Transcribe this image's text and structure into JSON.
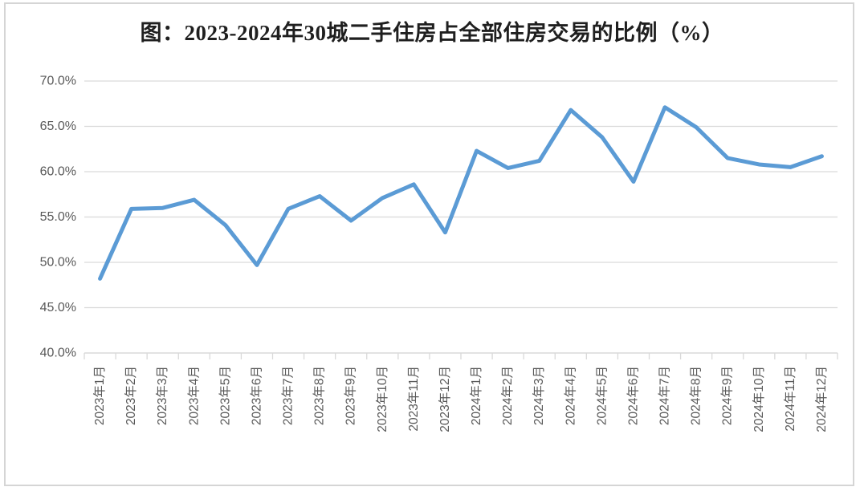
{
  "figure": {
    "border_color": "#d5d5d5",
    "background": "#ffffff"
  },
  "chart_data": {
    "type": "line",
    "title": "图：2023-2024年30城二手住房占全部住房交易的比例（%）",
    "xlabel": "",
    "ylabel": "",
    "categories": [
      "2023年1月",
      "2023年2月",
      "2023年3月",
      "2023年4月",
      "2023年5月",
      "2023年6月",
      "2023年7月",
      "2023年8月",
      "2023年9月",
      "2023年10月",
      "2023年11月",
      "2023年12月",
      "2024年1月",
      "2024年2月",
      "2024年3月",
      "2024年4月",
      "2024年5月",
      "2024年6月",
      "2024年7月",
      "2024年8月",
      "2024年9月",
      "2024年10月",
      "2024年11月",
      "2024年12月"
    ],
    "values": [
      48.2,
      55.9,
      56.0,
      56.9,
      54.1,
      49.7,
      55.9,
      57.3,
      54.6,
      57.1,
      58.6,
      53.3,
      62.3,
      60.4,
      61.2,
      66.8,
      63.8,
      58.9,
      67.1,
      64.9,
      61.5,
      60.8,
      60.5,
      61.7
    ],
    "ylim": [
      40,
      70
    ],
    "ytick_step": 5,
    "ytick_labels": [
      "40.0%",
      "45.0%",
      "50.0%",
      "55.0%",
      "60.0%",
      "65.0%",
      "70.0%"
    ],
    "grid": true,
    "legend_position": "none",
    "line_color": "#5b9bd5",
    "line_width": 5,
    "grid_color": "#d9d9d9",
    "axis_color": "#d9d9d9",
    "tick_label_color": "#595959",
    "title_color": "#1f1f1f"
  }
}
